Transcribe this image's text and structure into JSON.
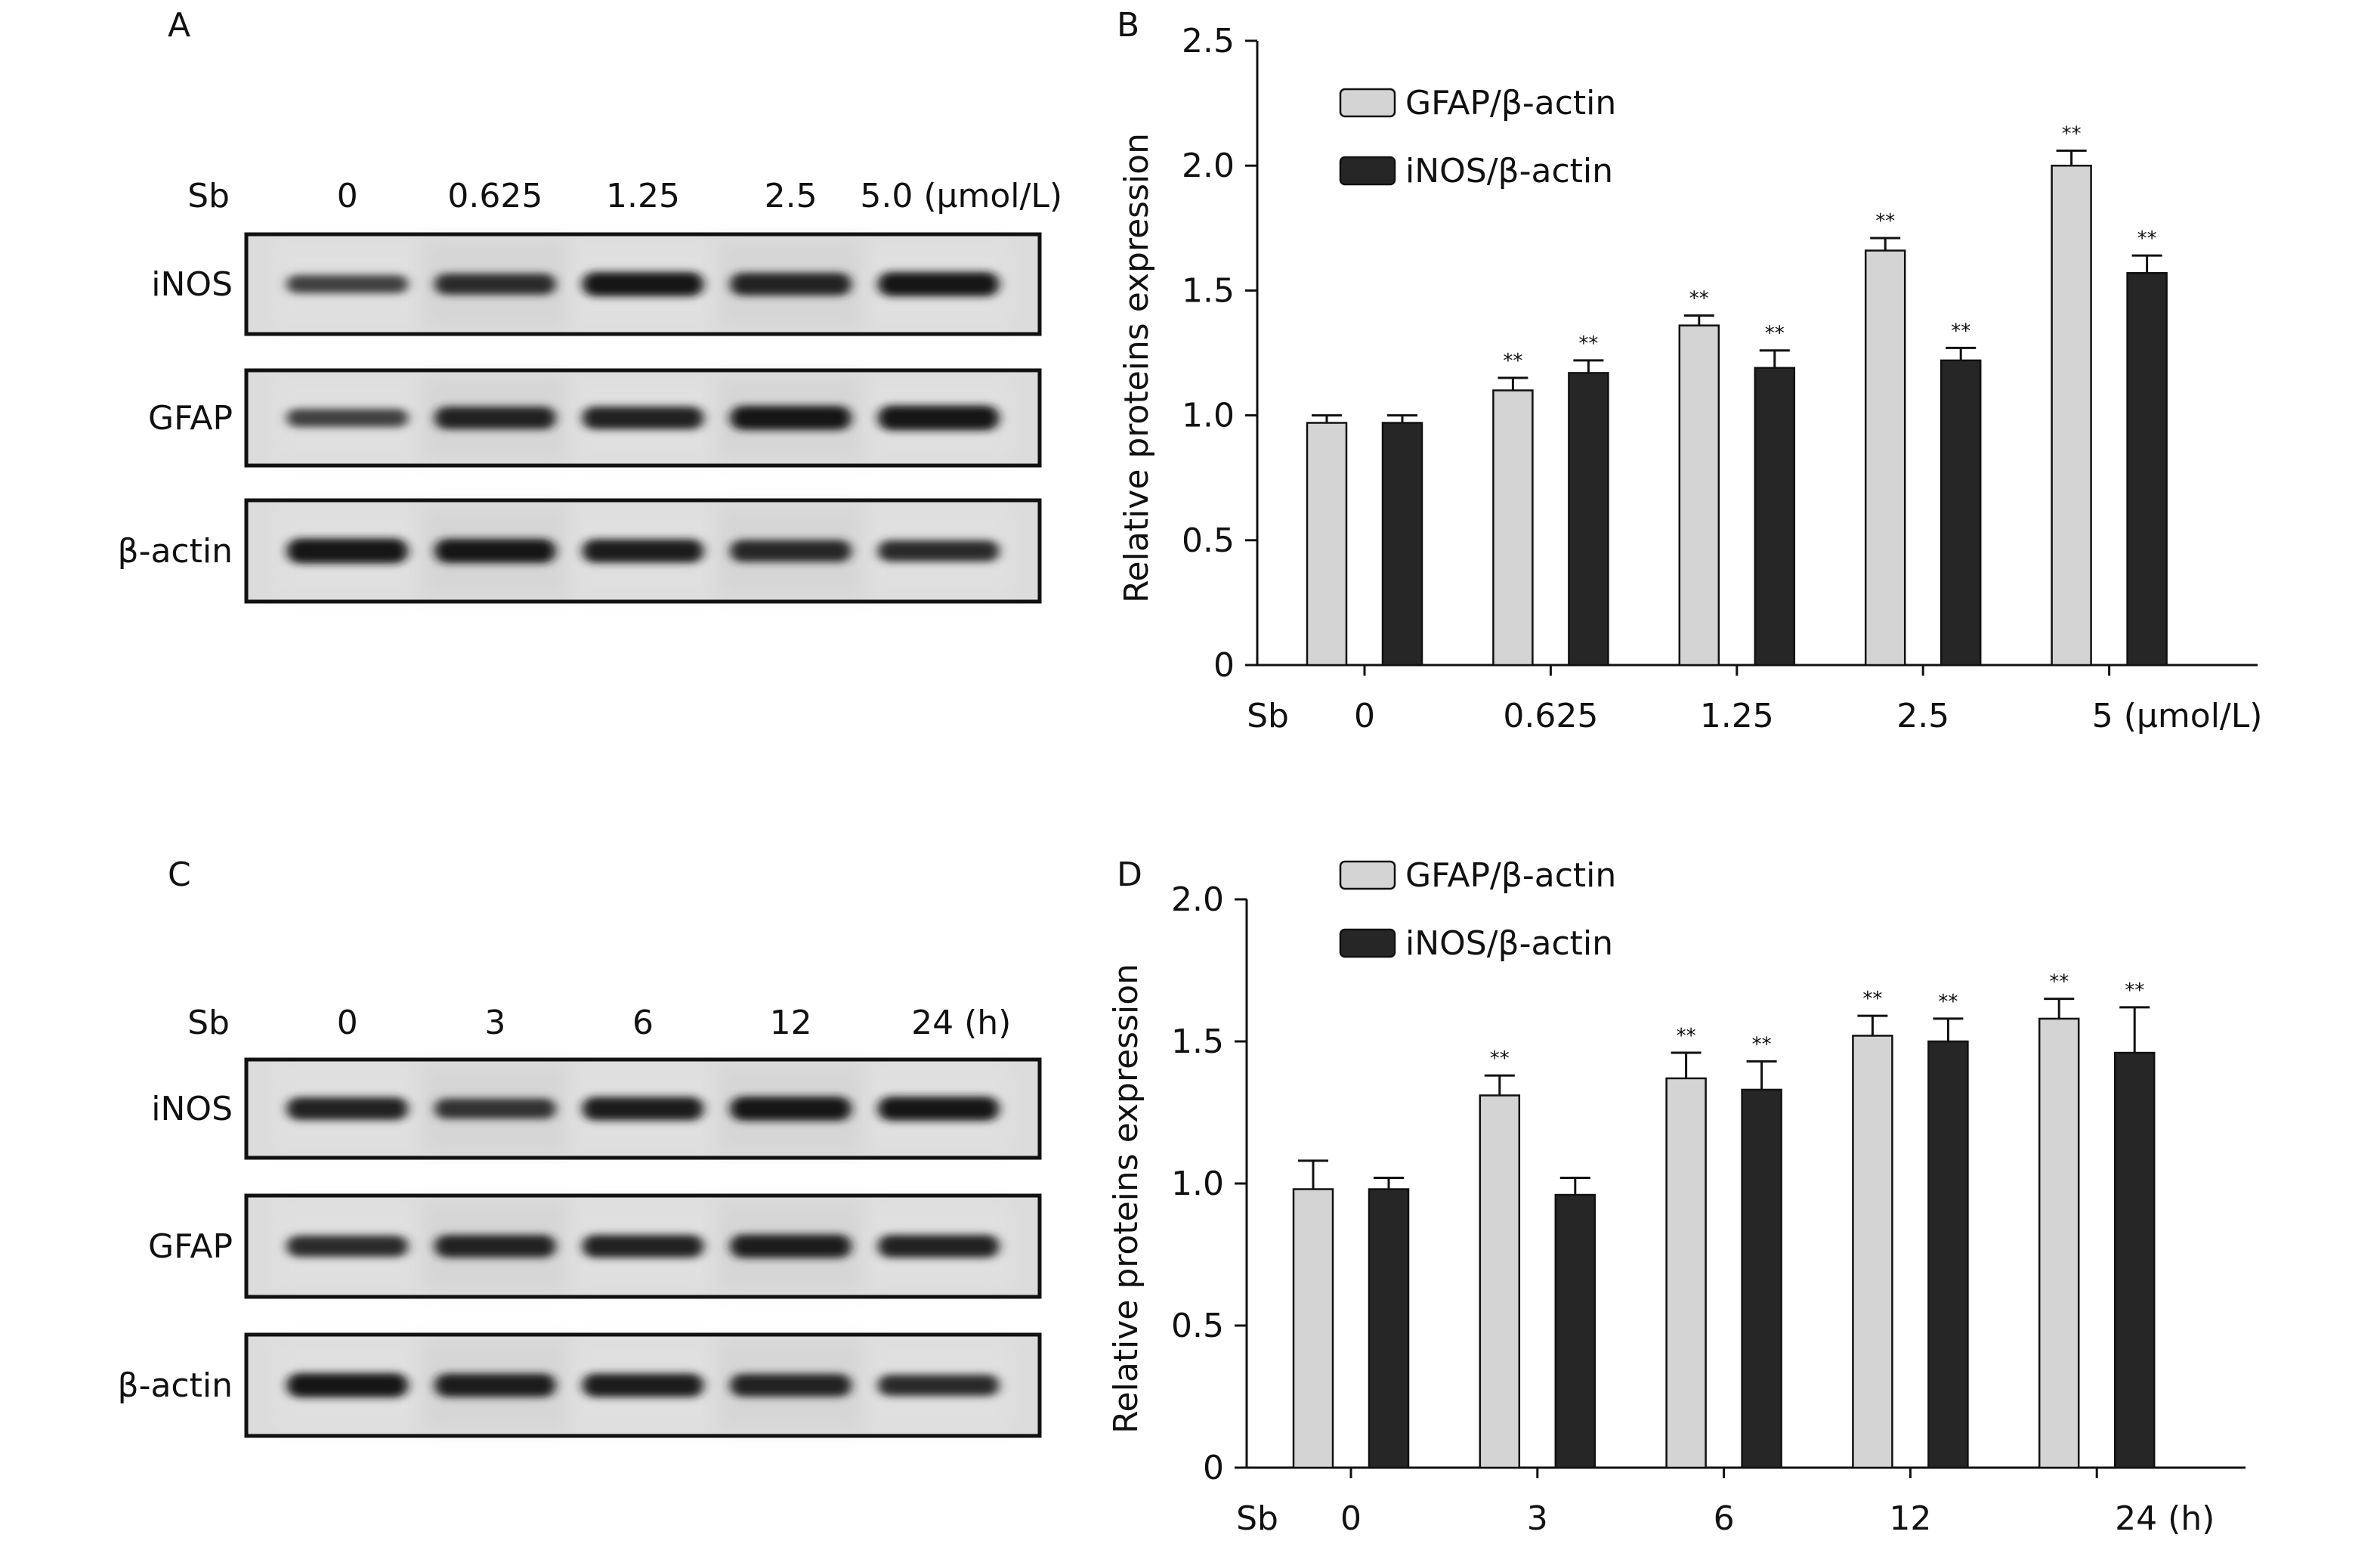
{
  "panels": {
    "A": {
      "label": "A",
      "row_prefix": "Sb",
      "lanes": [
        "0",
        "0.625",
        "1.25",
        "2.5",
        "5.0 (μmol/L)"
      ],
      "blots": [
        {
          "label": "iNOS",
          "intensity": [
            0.5,
            0.7,
            0.9,
            0.8,
            0.9
          ]
        },
        {
          "label": "GFAP",
          "intensity": [
            0.5,
            0.8,
            0.8,
            0.9,
            0.95
          ]
        },
        {
          "label": "β-actin",
          "intensity": [
            0.95,
            0.9,
            0.85,
            0.75,
            0.7
          ]
        }
      ]
    },
    "C": {
      "label": "C",
      "row_prefix": "Sb",
      "lanes": [
        "0",
        "3",
        "6",
        "12",
        "24 (h)"
      ],
      "blots": [
        {
          "label": "iNOS",
          "intensity": [
            0.8,
            0.65,
            0.85,
            0.9,
            0.9
          ]
        },
        {
          "label": "GFAP",
          "intensity": [
            0.7,
            0.8,
            0.8,
            0.85,
            0.8
          ]
        },
        {
          "label": "β-actin",
          "intensity": [
            0.9,
            0.85,
            0.85,
            0.8,
            0.7
          ]
        }
      ]
    },
    "B": {
      "label": "B"
    },
    "D": {
      "label": "D"
    }
  },
  "chart_data": [
    {
      "panel": "B",
      "type": "bar",
      "ylabel": "Relative proteins expression",
      "xlabel": "",
      "x_prefix": "Sb",
      "categories": [
        "0",
        "0.625",
        "1.25",
        "2.5",
        "5 (μmol/L)"
      ],
      "ylim": [
        0,
        2.5
      ],
      "yticks": [
        "0",
        "0.5",
        "1.0",
        "1.5",
        "2.0",
        "2.5"
      ],
      "legend": "top-left",
      "grid": false,
      "series": [
        {
          "name": "GFAP/β-actin",
          "color": "#d4d4d4",
          "values": [
            0.97,
            1.1,
            1.36,
            1.66,
            2.0
          ],
          "errors": [
            0.03,
            0.05,
            0.04,
            0.05,
            0.06
          ],
          "marks": [
            "",
            "**",
            "**",
            "**",
            "**"
          ]
        },
        {
          "name": "iNOS/β-actin",
          "color": "#262626",
          "values": [
            0.97,
            1.17,
            1.19,
            1.22,
            1.57
          ],
          "errors": [
            0.03,
            0.05,
            0.07,
            0.05,
            0.07
          ],
          "marks": [
            "",
            "**",
            "**",
            "**",
            "**"
          ]
        }
      ]
    },
    {
      "panel": "D",
      "type": "bar",
      "ylabel": "Relative proteins expression",
      "xlabel": "",
      "x_prefix": "Sb",
      "categories": [
        "0",
        "3",
        "6",
        "12",
        "24 (h)"
      ],
      "ylim": [
        0,
        2.0
      ],
      "yticks": [
        "0",
        "0.5",
        "1.0",
        "1.5",
        "2.0"
      ],
      "legend": "top-left",
      "grid": false,
      "series": [
        {
          "name": "GFAP/β-actin",
          "color": "#d4d4d4",
          "values": [
            0.98,
            1.31,
            1.37,
            1.52,
            1.58
          ],
          "errors": [
            0.1,
            0.07,
            0.09,
            0.07,
            0.07
          ],
          "marks": [
            "",
            "**",
            "**",
            "**",
            "**"
          ]
        },
        {
          "name": "iNOS/β-actin",
          "color": "#262626",
          "values": [
            0.98,
            0.96,
            1.33,
            1.5,
            1.46
          ],
          "errors": [
            0.04,
            0.06,
            0.1,
            0.08,
            0.16
          ],
          "marks": [
            "",
            "",
            "**",
            "**",
            "**"
          ]
        }
      ]
    }
  ]
}
